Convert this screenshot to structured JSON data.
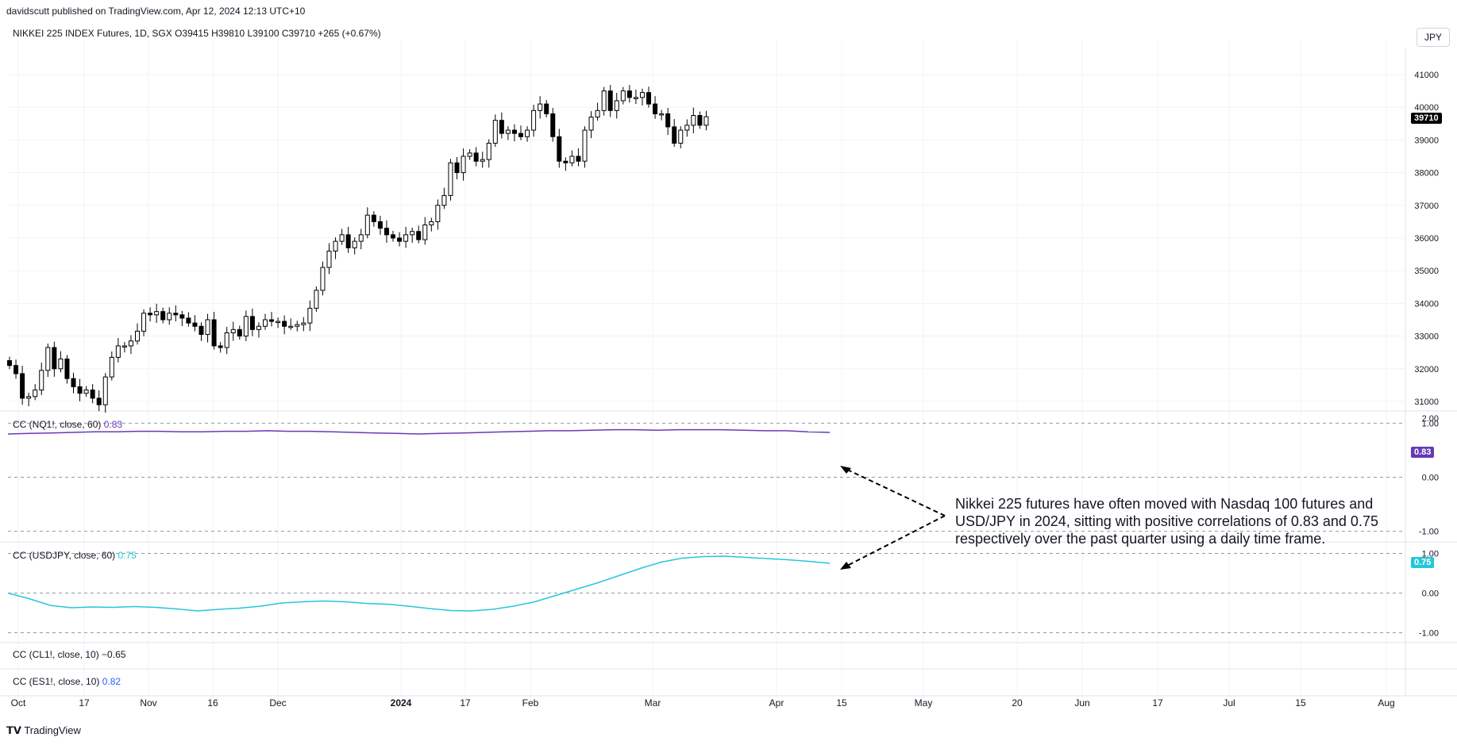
{
  "header": {
    "publisher": "davidscutt published on TradingView.com, Apr 12, 2024 12:13 UTC+10",
    "symbol_line": "NIKKEI 225 INDEX Futures, 1D, SGX  O39415  H39810  L39100  C39710  +265 (+0.67%)",
    "currency_button": "JPY"
  },
  "panes": [
    {
      "label_prefix": "CC (NQ1!, close, 60)",
      "value": "0.83",
      "color": "#673ab7"
    },
    {
      "label_prefix": "CC (USDJPY, close, 60)",
      "value": "0.75",
      "color": "#26c6da"
    },
    {
      "label_prefix": "CC (CL1!, close, 10)",
      "value": "−0.65",
      "color": "#131722"
    },
    {
      "label_prefix": "CC (ES1!, close, 10)",
      "value": "0.82",
      "color": "#2962ff"
    }
  ],
  "annotation": "Nikkei 225 futures have often moved with Nasdaq 100 futures and USD/JPY in 2024, sitting with positive correlations of 0.83 and 0.75 respectively over the past quarter using a daily time frame.",
  "footer": {
    "brand": "TradingView"
  },
  "colors": {
    "bull": "#ffffff",
    "bear": "#000000",
    "nq": "#673ab7",
    "usdjpy": "#26c6da",
    "grid": "#f0f3fa"
  },
  "chart_data": {
    "type": "candlestick",
    "price": {
      "ylim": [
        30700,
        41700
      ],
      "y_ticks": [
        31000,
        32000,
        33000,
        34000,
        35000,
        36000,
        37000,
        38000,
        39000,
        40000,
        41000
      ],
      "y_tick_labels": [
        "31000",
        "32000",
        "33000",
        "34000",
        "35000",
        "36000",
        "37000",
        "38000",
        "39000",
        "40000",
        "41000"
      ],
      "last_price_label": "39710",
      "closes": [
        32100,
        31850,
        31100,
        31150,
        31350,
        31950,
        32650,
        32000,
        32300,
        31700,
        31450,
        31250,
        31350,
        31100,
        30900,
        31750,
        32350,
        32700,
        32700,
        32850,
        33150,
        33700,
        33650,
        33750,
        33500,
        33700,
        33650,
        33550,
        33400,
        33300,
        33050,
        33500,
        32700,
        32650,
        33100,
        33200,
        33000,
        33600,
        33200,
        33300,
        33500,
        33450,
        33450,
        33300,
        33300,
        33350,
        33400,
        33850,
        34400,
        35100,
        35600,
        35900,
        36100,
        35700,
        35900,
        36100,
        36700,
        36500,
        36300,
        36100,
        36000,
        35900,
        36100,
        36200,
        35950,
        36400,
        36500,
        37000,
        37300,
        38300,
        38000,
        38500,
        38600,
        38350,
        38400,
        38900,
        39600,
        39200,
        39300,
        39200,
        39100,
        39300,
        39900,
        40100,
        39800,
        39100,
        38350,
        38300,
        38500,
        38350,
        39300,
        39700,
        39900,
        40500,
        39900,
        40200,
        40500,
        40300,
        40300,
        40450,
        40100,
        39800,
        39800,
        39400,
        38900,
        39300,
        39450,
        39750,
        39450,
        39710
      ],
      "ohlc_recent": {
        "open": 39415,
        "high": 39810,
        "low": 39100,
        "close": 39710,
        "change": "+265 (+0.67%)"
      }
    },
    "indicators": [
      {
        "name": "CC (NQ1!, close, 60)",
        "ylim": [
          -1.05,
          1.05
        ],
        "ticks": [
          1.0,
          0.0,
          -1.0
        ],
        "tick_labels": [
          "1.00",
          "0.00",
          "-1.00"
        ],
        "top_label": "2.00",
        "values": [
          0.8,
          0.81,
          0.82,
          0.83,
          0.84,
          0.84,
          0.85,
          0.85,
          0.84,
          0.84,
          0.85,
          0.85,
          0.86,
          0.85,
          0.85,
          0.84,
          0.83,
          0.82,
          0.81,
          0.8,
          0.81,
          0.82,
          0.83,
          0.84,
          0.85,
          0.86,
          0.86,
          0.87,
          0.88,
          0.88,
          0.87,
          0.88,
          0.88,
          0.88,
          0.87,
          0.86,
          0.86,
          0.84,
          0.83
        ]
      },
      {
        "name": "CC (USDJPY, close, 60)",
        "ylim": [
          -1.05,
          1.05
        ],
        "ticks": [
          1.0,
          0.0,
          -1.0
        ],
        "tick_labels": [
          "1.00",
          "0.00",
          "-1.00"
        ],
        "values": [
          0.0,
          -0.14,
          -0.31,
          -0.37,
          -0.35,
          -0.36,
          -0.34,
          -0.36,
          -0.4,
          -0.45,
          -0.41,
          -0.38,
          -0.33,
          -0.25,
          -0.22,
          -0.2,
          -0.22,
          -0.26,
          -0.28,
          -0.33,
          -0.39,
          -0.44,
          -0.45,
          -0.41,
          -0.33,
          -0.22,
          -0.06,
          0.1,
          0.26,
          0.44,
          0.62,
          0.78,
          0.88,
          0.92,
          0.93,
          0.9,
          0.87,
          0.84,
          0.8,
          0.75
        ]
      },
      {
        "name": "CC (CL1!, close, 10)",
        "last_value": -0.65
      },
      {
        "name": "CC (ES1!, close, 10)",
        "last_value": 0.82
      }
    ],
    "x_tick_labels": [
      "Oct",
      "17",
      "Nov",
      "16",
      "Dec",
      "2024",
      "17",
      "Feb",
      "Mar",
      "Apr",
      "15",
      "May",
      "20",
      "Jun",
      "17",
      "Jul",
      "15",
      "Aug"
    ],
    "x_tick_bold": [
      false,
      false,
      false,
      false,
      false,
      true,
      false,
      false,
      false,
      false,
      false,
      false,
      false,
      false,
      false,
      false,
      false,
      false
    ]
  }
}
